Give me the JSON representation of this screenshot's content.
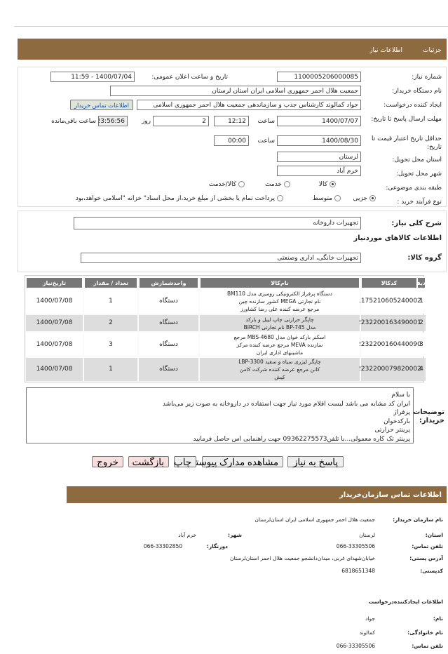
{
  "tabs": [
    "جزئیات",
    "اطلاعات نیاز"
  ],
  "form": {
    "need_number_label": "شماره نیاز:",
    "need_number": "1100005206000085",
    "announce_label": "تاریخ و ساعت اعلان عمومی:",
    "announce": "1400/07/04 - 11:59",
    "buyer_label": "نام دستگاه خریدار:",
    "buyer": "جمعیت هلال احمر جمهوری اسلامی ایران استان لرستان",
    "creator_label": "ایجاد کننده درخواست:",
    "creator": "جواد کمالوند کارشناس جذب و سازماندهی جمعیت هلال احمر جمهوری اسلامی",
    "contact_link": "اطلاعات تماس خریدار",
    "deadline_label": "مهلت ارسال پاسخ تا تاریخ:",
    "deadline_date": "1400/07/07",
    "hour_label": "ساعت",
    "deadline_hour": "12:12",
    "days": "2",
    "days_label": "روز",
    "remaining": "23:56:56",
    "remaining_label": "ساعت باقی‌مانده",
    "validity_label": "حداقل تاریخ اعتبار قیمت تا تاریخ:",
    "validity_date": "1400/08/30",
    "validity_hour_label": "ساعت",
    "validity_hour": "00:00",
    "province_label": "استان محل تحویل:",
    "province": "لرستان",
    "city_label": "شهر محل تحویل:",
    "city": "خرم آباد",
    "category_label": "طبقه بندی موضوعی:",
    "category_options": [
      "کالا",
      "خدمت",
      "کالا/خدمت"
    ],
    "process_label": "نوع فرآیند خرید :",
    "process_options": [
      "جزیی",
      "متوسط"
    ],
    "payment_note": "پرداخت تمام یا بخشی از مبلغ خرید،از محل اسناد\" خزانه \"اسلامی خواهد،بود"
  },
  "summary": {
    "label": "شرح کلی نیاز:",
    "value": "تجهیزات داروخانه",
    "items_title": "اطلاعات کالاهای موردنیاز",
    "group_label": "گروه کالا:",
    "group": "تجهیزات خانگی، اداری وصنعتی"
  },
  "table": {
    "headers": [
      "ردیف",
      "کدکالا",
      "نام‌کالا",
      "واحدشمارش",
      "تعداد / مقدار",
      "تاریخ‌نیاز"
    ],
    "rows": [
      [
        "1",
        "1175210605240002",
        "دستگاه پرفراژ الکترونیکی رومیزی مدل BM110\nنام تجارتی MEGA کشور سازنده چین\nمرجع عرضه کننده علی رضا کشاورز",
        "دستگاه",
        "1",
        "1400/07/08"
      ],
      [
        "2",
        "2232200163490001",
        "چاپگر حرارتی چاپ لیبل و بارکد\nمدل BP-745 نام تجارتی BIRCH",
        "دستگاه",
        "2",
        "1400/07/08"
      ],
      [
        "3",
        "2232200160440090",
        "اسکنر بارکد خوان مدل MBS-4680 مرجع\nسازنده MEVA مرجع عرضه کننده مرکز\nماشینهای اداری ایران",
        "دستگاه",
        "3",
        "1400/07/08"
      ],
      [
        "4",
        "2232200079820002",
        "چاپگر لیزری سیاه و سفید LBP-3300\nکانن مرجع عرضه کننده شرکت کامن\nکیش",
        "دستگاه",
        "1",
        "1400/07/08"
      ]
    ]
  },
  "description": {
    "label": "توضیحات خریدار:",
    "lines": [
      "با سلام",
      "ایران کد مشابه می باشد لیست اقلام مورد نیاز جهت استفاده در داروخانه به صوت زیر می‌باشد",
      "پرفراژ",
      "بارکدخوان",
      "پرینتر حرارتی",
      "پرینتر تک کاره معمولی...با تلفن09362275573 جهت راهنمایی اس حاصل فرمایید"
    ]
  },
  "buttons": [
    "پاسخ به نیاز",
    "مشاهده مدارک پیوستی (0)",
    "چاپ",
    "بازگشت",
    "خروج"
  ],
  "contact": {
    "title": "اطلاعات تماس سازمان‌خریدار",
    "org_label": "نام سازمان خریدار:",
    "org": "جمعیت هلال احمر جمهوری اسلامی ایران استان‌لرستان",
    "province_label": "استان:",
    "province": "لرستان",
    "city_label": "شهر:",
    "city": "خرم آباد",
    "phone_label": "تلفن تماس:",
    "phone": "066-33305506",
    "fax_label": "دورنگار:",
    "fax": "066-33302850",
    "address_label": "آدرس پستی:",
    "address": "خیابان‌شهدای غربی، میدان‌دانشجو جمعیت هلال احمر استان‌لرستان",
    "postal_label": "کدپستی:",
    "postal": "6818651348",
    "creator_title": "اطلاعات ایجادکننده‌درخواست",
    "name_label": "نام:",
    "name": "جواد",
    "family_label": "نام خانوادگی:",
    "family": "کمالوند",
    "creator_phone_label": "تلفن تماس:",
    "creator_phone": "066-33305506"
  }
}
